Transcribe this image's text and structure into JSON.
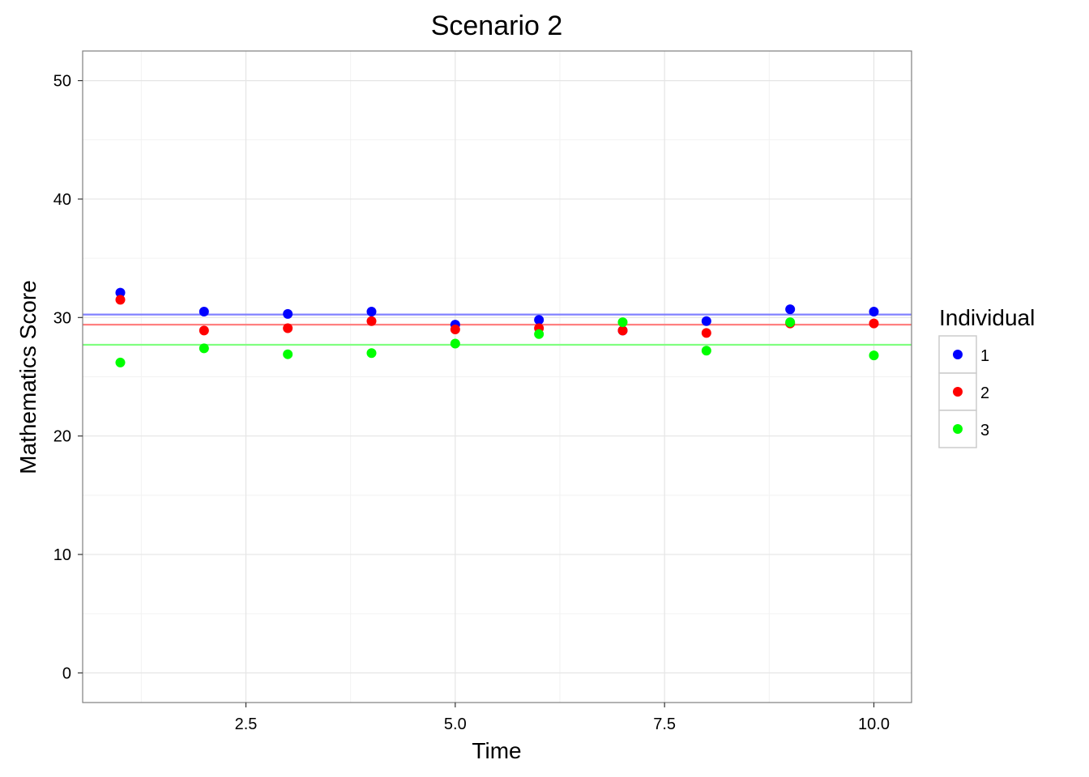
{
  "chart_data": {
    "type": "scatter",
    "title": "Scenario 2",
    "xlabel": "Time",
    "ylabel": "Mathematics Score",
    "xlim": [
      0.55,
      10.45
    ],
    "ylim": [
      -2.5,
      52.5
    ],
    "x_ticks": [
      2.5,
      5.0,
      7.5,
      10.0
    ],
    "x_tick_labels": [
      "2.5",
      "5.0",
      "7.5",
      "10.0"
    ],
    "y_ticks": [
      0,
      10,
      20,
      30,
      40,
      50
    ],
    "y_tick_labels": [
      "0",
      "10",
      "20",
      "30",
      "40",
      "50"
    ],
    "grid": true,
    "legend": {
      "title": "Individual",
      "placement": "right"
    },
    "x": [
      1,
      2,
      3,
      4,
      5,
      6,
      7,
      8,
      9,
      10
    ],
    "series": [
      {
        "name": "1",
        "color": "#0000FF",
        "line_color": "#8080FF",
        "mean": 30.25,
        "values": [
          32.1,
          30.5,
          30.3,
          30.5,
          29.4,
          29.8,
          28.9,
          29.7,
          30.7,
          30.5
        ]
      },
      {
        "name": "2",
        "color": "#FF0000",
        "line_color": "#FF8080",
        "mean": 29.4,
        "values": [
          31.5,
          28.9,
          29.1,
          29.7,
          29.0,
          29.1,
          28.9,
          28.7,
          29.5,
          29.5
        ]
      },
      {
        "name": "3",
        "color": "#00FF00",
        "line_color": "#80FF80",
        "mean": 27.7,
        "values": [
          26.2,
          27.4,
          26.9,
          27.0,
          27.8,
          28.6,
          29.6,
          27.2,
          29.6,
          26.8
        ]
      }
    ]
  }
}
